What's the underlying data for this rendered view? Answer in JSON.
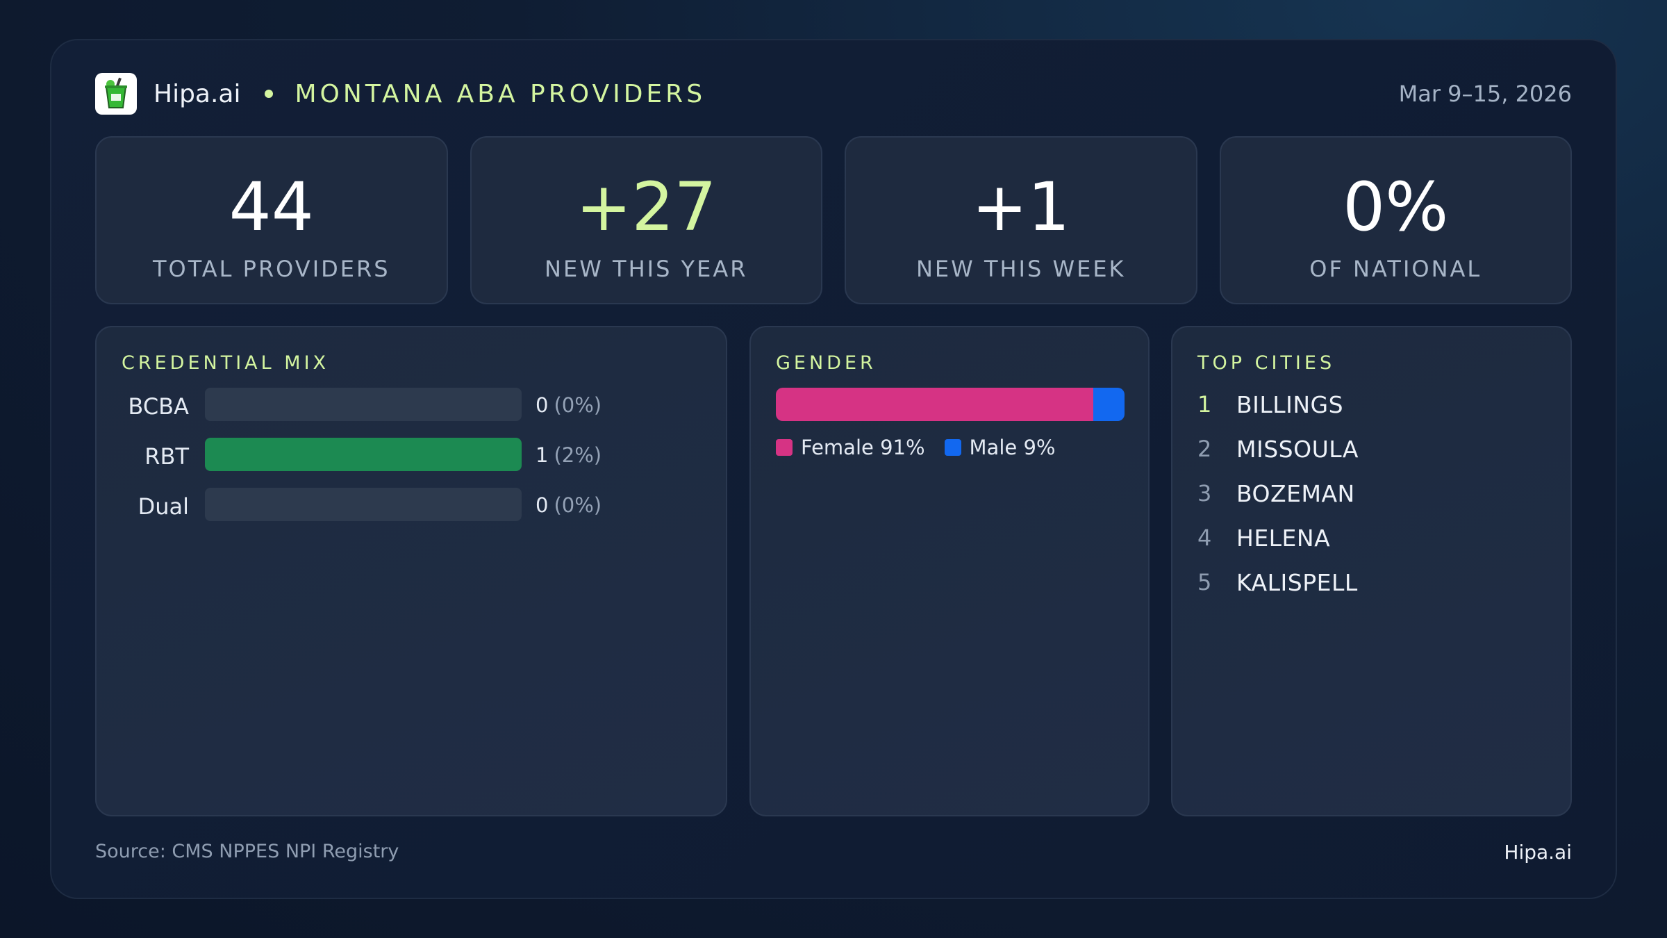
{
  "header": {
    "brand": "Hipa.ai",
    "title": "MONTANA ABA PROVIDERS",
    "date_range": "Mar 9–15, 2026",
    "logo_icon": "drink-cup-icon"
  },
  "stats": [
    {
      "value": "44",
      "label": "TOTAL PROVIDERS"
    },
    {
      "value": "+27",
      "label": "NEW THIS YEAR"
    },
    {
      "value": "+1",
      "label": "NEW THIS WEEK"
    },
    {
      "value": "0%",
      "label": "OF NATIONAL"
    }
  ],
  "credential_mix": {
    "title": "CREDENTIAL MIX",
    "rows": [
      {
        "label": "BCBA",
        "count": "0",
        "pct": "(0%)",
        "fill": 0
      },
      {
        "label": "RBT",
        "count": "1",
        "pct": "(2%)",
        "fill": 1
      },
      {
        "label": "Dual",
        "count": "0",
        "pct": "(0%)",
        "fill": 0
      }
    ]
  },
  "gender": {
    "title": "GENDER",
    "female_label": "Female 91%",
    "male_label": "Male 9%",
    "female_share": 91,
    "male_share": 9,
    "female_color": "#d63384",
    "male_color": "#1268f0"
  },
  "top_cities": {
    "title": "TOP CITIES",
    "items": [
      {
        "rank": "1",
        "name": "BILLINGS"
      },
      {
        "rank": "2",
        "name": "MISSOULA"
      },
      {
        "rank": "3",
        "name": "BOZEMAN"
      },
      {
        "rank": "4",
        "name": "HELENA"
      },
      {
        "rank": "5",
        "name": "KALISPELL"
      }
    ]
  },
  "footer": {
    "source": "Source: CMS NPPES NPI Registry",
    "brand": "Hipa.ai"
  },
  "colors": {
    "accent": "#d4f5a0",
    "rbt_bar": "#1c8a52"
  }
}
